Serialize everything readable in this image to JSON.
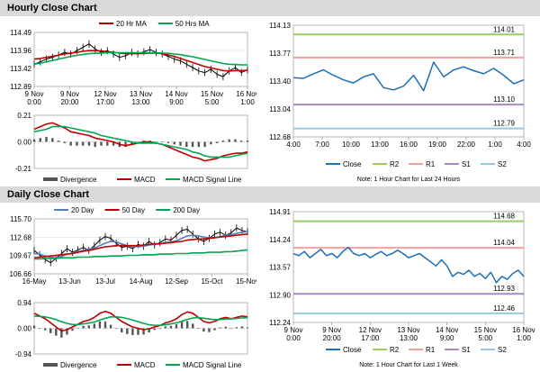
{
  "sections": {
    "hourly_title": "Hourly Close Chart",
    "daily_title": "Daily Close Chart"
  },
  "colors": {
    "price": "#000000",
    "ma_short": "#c00000",
    "ma_long": "#00a651",
    "ma_mid": "#4f81bd",
    "macd": "#c00000",
    "signal": "#00a651",
    "divergence": "#555555",
    "close": "#1f6fb5",
    "r2": "#9acd65",
    "r1": "#f4a0a0",
    "s1": "#a58ac8",
    "s2": "#92cddc",
    "gray_band": "#d9d9d9"
  },
  "chart_data": [
    {
      "id": "hourly_price",
      "type": "line",
      "x_ticks": [
        "9 Nov\n0:00",
        "9 Nov\n20:00",
        "12 Nov\n17:00",
        "13 Nov\n13:00",
        "14 Nov\n9:00",
        "15 Nov\n5:00",
        "16 Nov\n1:00"
      ],
      "ylim": [
        112.89,
        114.49
      ],
      "y_ticks": [
        "114.49",
        "113.96",
        "113.42",
        "112.89"
      ],
      "legend": [
        "20 Hr MA",
        "50 Hrs MA"
      ],
      "series": [
        {
          "name": "Close",
          "values": [
            113.55,
            113.62,
            113.7,
            113.75,
            113.82,
            113.9,
            113.85,
            113.95,
            114.05,
            114.15,
            114.0,
            113.9,
            113.95,
            113.85,
            113.75,
            113.8,
            113.9,
            113.85,
            113.92,
            113.98,
            113.9,
            113.85,
            113.78,
            113.7,
            113.65,
            113.55,
            113.45,
            113.35,
            113.3,
            113.4,
            113.25,
            113.18,
            113.35,
            113.45,
            113.3,
            113.38
          ]
        },
        {
          "name": "20 Hr MA",
          "values": [
            113.7,
            113.72,
            113.75,
            113.78,
            113.82,
            113.85,
            113.88,
            113.9,
            113.93,
            113.95,
            113.95,
            113.94,
            113.92,
            113.9,
            113.88,
            113.86,
            113.86,
            113.86,
            113.87,
            113.88,
            113.88,
            113.86,
            113.82,
            113.78,
            113.72,
            113.66,
            113.6,
            113.54,
            113.48,
            113.44,
            113.4,
            113.36,
            113.35,
            113.36,
            113.36,
            113.37
          ]
        },
        {
          "name": "50 Hrs MA",
          "values": [
            113.55,
            113.58,
            113.62,
            113.66,
            113.7,
            113.74,
            113.78,
            113.81,
            113.84,
            113.86,
            113.87,
            113.88,
            113.89,
            113.89,
            113.89,
            113.89,
            113.89,
            113.89,
            113.89,
            113.89,
            113.89,
            113.88,
            113.87,
            113.85,
            113.83,
            113.8,
            113.77,
            113.73,
            113.69,
            113.65,
            113.61,
            113.57,
            113.55,
            113.54,
            113.53,
            113.53
          ]
        }
      ]
    },
    {
      "id": "hourly_macd",
      "type": "line",
      "ylim": [
        -0.21,
        0.21
      ],
      "y_ticks": [
        "0.21",
        "0.00",
        "-0.21"
      ],
      "legend": [
        "Divergence",
        "MACD",
        "MACD Signal Line"
      ],
      "series": [
        {
          "name": "MACD",
          "values": [
            0.1,
            0.12,
            0.14,
            0.15,
            0.13,
            0.11,
            0.08,
            0.07,
            0.06,
            0.05,
            0.03,
            0.02,
            0.01,
            0.0,
            -0.02,
            -0.03,
            -0.02,
            -0.01,
            0.0,
            0.0,
            -0.01,
            -0.02,
            -0.04,
            -0.06,
            -0.08,
            -0.1,
            -0.12,
            -0.13,
            -0.15,
            -0.14,
            -0.13,
            -0.11,
            -0.1,
            -0.09,
            -0.09,
            -0.08
          ]
        },
        {
          "name": "MACD Signal Line",
          "values": [
            0.08,
            0.09,
            0.1,
            0.12,
            0.12,
            0.12,
            0.11,
            0.1,
            0.09,
            0.08,
            0.07,
            0.05,
            0.04,
            0.03,
            0.02,
            0.01,
            0.0,
            -0.01,
            -0.01,
            -0.01,
            -0.01,
            -0.02,
            -0.03,
            -0.04,
            -0.05,
            -0.06,
            -0.08,
            -0.09,
            -0.11,
            -0.12,
            -0.12,
            -0.12,
            -0.12,
            -0.11,
            -0.1,
            -0.09
          ]
        }
      ]
    },
    {
      "id": "hourly_pivots",
      "type": "line",
      "x_ticks": [
        "4:00",
        "7:00",
        "10:00",
        "13:00",
        "16:00",
        "19:00",
        "22:00",
        "1:00",
        "4:00"
      ],
      "ylim": [
        112.68,
        114.13
      ],
      "y_ticks": [
        "114.13",
        "113.77",
        "113.40",
        "113.04",
        "112.68"
      ],
      "levels": [
        {
          "name": "R2",
          "value": 114.01,
          "label": "114.01"
        },
        {
          "name": "R1",
          "value": 113.71,
          "label": "113.71"
        },
        {
          "name": "S1",
          "value": 113.1,
          "label": "113.10"
        },
        {
          "name": "S2",
          "value": 112.79,
          "label": "112.79"
        }
      ],
      "legend": [
        "Close",
        "R2",
        "R1",
        "S1",
        "S2"
      ],
      "note": "Note: 1 Hour Chart for Last 24 Hours",
      "series": [
        {
          "name": "Close",
          "values": [
            113.45,
            113.44,
            113.5,
            113.55,
            113.48,
            113.42,
            113.38,
            113.46,
            113.5,
            113.32,
            113.29,
            113.34,
            113.48,
            113.28,
            113.65,
            113.46,
            113.55,
            113.59,
            113.54,
            113.5,
            113.57,
            113.48,
            113.37,
            113.42
          ]
        }
      ]
    },
    {
      "id": "daily_price",
      "type": "line",
      "x_ticks": [
        "16-May",
        "13-Jun",
        "13-Jul",
        "14-Aug",
        "12-Sep",
        "15-Oct",
        "15-Nov"
      ],
      "ylim": [
        106.66,
        115.7
      ],
      "y_ticks": [
        "115.70",
        "112.68",
        "109.67",
        "106.66"
      ],
      "legend": [
        "20 Day",
        "50 Day",
        "200 Day"
      ],
      "series": [
        {
          "name": "Close",
          "values": [
            110.5,
            109.8,
            109.0,
            108.5,
            109.2,
            110.0,
            110.8,
            110.2,
            110.6,
            111.0,
            110.5,
            111.3,
            112.2,
            112.8,
            112.5,
            111.7,
            111.0,
            111.2,
            110.8,
            111.5,
            111.2,
            112.0,
            111.4,
            111.8,
            112.4,
            112.2,
            113.0,
            113.8,
            114.0,
            113.2,
            112.4,
            112.0,
            112.5,
            113.2,
            113.5,
            113.0,
            113.4,
            114.2,
            113.8,
            113.6
          ]
        },
        {
          "name": "20 Day",
          "values": [
            110.0,
            109.9,
            109.6,
            109.4,
            109.3,
            109.5,
            109.9,
            110.1,
            110.3,
            110.5,
            110.7,
            110.9,
            111.3,
            111.7,
            112.0,
            111.9,
            111.6,
            111.3,
            111.1,
            111.1,
            111.2,
            111.4,
            111.5,
            111.6,
            111.8,
            111.9,
            112.1,
            112.5,
            112.9,
            113.0,
            112.9,
            112.7,
            112.6,
            112.6,
            112.8,
            113.0,
            113.1,
            113.3,
            113.5,
            113.6
          ]
        },
        {
          "name": "50 Day",
          "values": [
            109.3,
            109.4,
            109.5,
            109.6,
            109.7,
            109.8,
            109.9,
            110.0,
            110.2,
            110.4,
            110.5,
            110.7,
            110.9,
            111.1,
            111.2,
            111.3,
            111.3,
            111.3,
            111.3,
            111.3,
            111.4,
            111.5,
            111.6,
            111.6,
            111.7,
            111.8,
            111.9,
            112.0,
            112.2,
            112.3,
            112.4,
            112.4,
            112.5,
            112.6,
            112.7,
            112.8,
            112.9,
            113.0,
            113.1,
            113.2
          ]
        },
        {
          "name": "200 Day",
          "values": [
            109.1,
            109.1,
            109.2,
            109.2,
            109.2,
            109.3,
            109.3,
            109.3,
            109.4,
            109.4,
            109.4,
            109.5,
            109.5,
            109.5,
            109.6,
            109.6,
            109.6,
            109.7,
            109.7,
            109.7,
            109.8,
            109.8,
            109.8,
            109.9,
            109.9,
            109.9,
            110.0,
            110.0,
            110.0,
            110.1,
            110.1,
            110.1,
            110.2,
            110.2,
            110.2,
            110.3,
            110.3,
            110.4,
            110.5,
            110.6
          ]
        }
      ]
    },
    {
      "id": "daily_macd",
      "type": "line",
      "ylim": [
        -0.94,
        0.94
      ],
      "y_ticks": [
        "0.94",
        "0.00",
        "-0.94"
      ],
      "legend": [
        "Divergence",
        "MACD",
        "MACD Signal Line"
      ],
      "series": [
        {
          "name": "MACD",
          "values": [
            0.55,
            0.45,
            0.35,
            0.2,
            0.05,
            -0.1,
            -0.05,
            0.05,
            0.15,
            0.25,
            0.3,
            0.4,
            0.55,
            0.62,
            0.55,
            0.4,
            0.25,
            0.15,
            0.05,
            0.0,
            -0.05,
            -0.02,
            0.05,
            0.1,
            0.2,
            0.25,
            0.35,
            0.5,
            0.6,
            0.55,
            0.4,
            0.25,
            0.2,
            0.25,
            0.35,
            0.4,
            0.35,
            0.4,
            0.45,
            0.42
          ]
        },
        {
          "name": "MACD Signal Line",
          "values": [
            0.45,
            0.44,
            0.42,
            0.38,
            0.32,
            0.24,
            0.18,
            0.14,
            0.14,
            0.16,
            0.19,
            0.23,
            0.3,
            0.37,
            0.42,
            0.42,
            0.4,
            0.36,
            0.3,
            0.24,
            0.18,
            0.13,
            0.11,
            0.11,
            0.13,
            0.16,
            0.2,
            0.26,
            0.33,
            0.38,
            0.39,
            0.37,
            0.34,
            0.32,
            0.32,
            0.34,
            0.35,
            0.36,
            0.38,
            0.39
          ]
        }
      ]
    },
    {
      "id": "weekly_pivots",
      "type": "line",
      "x_ticks": [
        "9 Nov\n0:00",
        "9 Nov\n20:00",
        "12 Nov\n17:00",
        "13 Nov\n13:00",
        "14 Nov\n9:00",
        "15 Nov\n5:00",
        "16 Nov\n1:00"
      ],
      "ylim": [
        112.24,
        114.91
      ],
      "y_ticks": [
        "114.91",
        "114.24",
        "113.57",
        "112.90",
        "112.24"
      ],
      "levels": [
        {
          "name": "R2",
          "value": 114.68,
          "label": "114.68"
        },
        {
          "name": "R1",
          "value": 114.04,
          "label": "114.04"
        },
        {
          "name": "S1",
          "value": 112.93,
          "label": "112.93"
        },
        {
          "name": "S2",
          "value": 112.46,
          "label": "112.46"
        }
      ],
      "legend": [
        "Close",
        "R2",
        "R1",
        "S1",
        "S2"
      ],
      "note": "Note: 1 Hour Chart for Last 1 Week",
      "series": [
        {
          "name": "Close",
          "values": [
            113.9,
            113.85,
            113.95,
            113.8,
            113.9,
            114.0,
            113.85,
            113.9,
            113.8,
            113.95,
            114.05,
            113.9,
            113.85,
            113.9,
            113.8,
            113.88,
            113.95,
            113.85,
            113.9,
            113.98,
            113.9,
            113.8,
            113.85,
            113.9,
            113.8,
            113.7,
            113.6,
            113.75,
            113.6,
            113.35,
            113.45,
            113.4,
            113.5,
            113.35,
            113.42,
            113.3,
            113.45,
            113.2,
            113.35,
            113.28,
            113.42,
            113.5,
            113.35
          ]
        }
      ]
    }
  ]
}
